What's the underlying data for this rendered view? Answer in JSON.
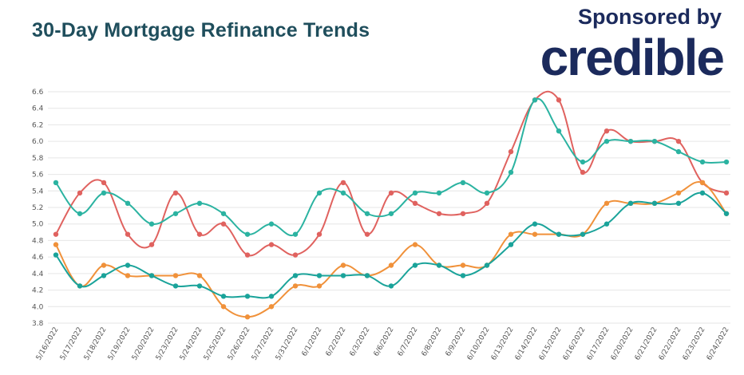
{
  "header": {
    "title": "30-Day Mortgage Refinance Trends",
    "sponsor_text": "Sponsored by",
    "brand_text": "credible"
  },
  "colors": {
    "grid": "#e6e6e6",
    "text": "#555555"
  },
  "chart_data": {
    "type": "line",
    "title": "30-Day Mortgage Refinance Trends",
    "xlabel": "",
    "ylabel": "",
    "ylim": [
      3.8,
      6.6
    ],
    "yticks": [
      3.8,
      4.0,
      4.2,
      4.4,
      4.6,
      4.8,
      5.0,
      5.2,
      5.4,
      5.6,
      5.8,
      6.0,
      6.2,
      6.4,
      6.6
    ],
    "grid": true,
    "categories": [
      "5/16/2022",
      "5/17/2022",
      "5/18/2022",
      "5/19/2022",
      "5/20/2022",
      "5/23/2022",
      "5/24/2022",
      "5/25/2022",
      "5/26/2022",
      "5/27/2022",
      "5/31/2022",
      "6/1/2022",
      "6/2/2022",
      "6/3/2022",
      "6/6/2022",
      "6/7/2022",
      "6/8/2022",
      "6/9/2022",
      "6/10/2022",
      "6/13/2022",
      "6/14/2022",
      "6/15/2022",
      "6/16/2022",
      "6/17/2022",
      "6/20/2022",
      "6/21/2022",
      "6/22/2022",
      "6/23/2022",
      "6/24/2022"
    ],
    "series": [
      {
        "color": "#e0625f",
        "values": [
          4.875,
          5.375,
          5.5,
          4.875,
          4.75,
          5.375,
          4.875,
          5.0,
          4.625,
          4.75,
          4.625,
          4.875,
          5.5,
          4.875,
          5.375,
          5.25,
          5.125,
          5.125,
          5.25,
          5.875,
          6.5,
          6.5,
          5.625,
          6.125,
          6.0,
          6.0,
          6.0,
          5.5,
          5.375
        ]
      },
      {
        "color": "#2bb3a1",
        "values": [
          5.5,
          5.125,
          5.375,
          5.25,
          5.0,
          5.125,
          5.25,
          5.125,
          4.875,
          5.0,
          4.875,
          5.375,
          5.375,
          5.125,
          5.125,
          5.375,
          5.375,
          5.5,
          5.375,
          5.625,
          6.5,
          6.125,
          5.75,
          6.0,
          6.0,
          6.0,
          5.875,
          5.75,
          5.75
        ]
      },
      {
        "color": "#f0913a",
        "values": [
          4.75,
          4.25,
          4.5,
          4.375,
          4.375,
          4.375,
          4.375,
          4.0,
          3.875,
          4.0,
          4.25,
          4.25,
          4.5,
          4.375,
          4.5,
          4.75,
          4.5,
          4.5,
          4.5,
          4.875,
          4.875,
          4.875,
          4.875,
          5.25,
          5.25,
          5.25,
          5.375,
          5.5,
          5.125
        ]
      },
      {
        "color": "#1aa39a",
        "values": [
          4.625,
          4.25,
          4.375,
          4.5,
          4.375,
          4.25,
          4.25,
          4.125,
          4.125,
          4.125,
          4.375,
          4.375,
          4.375,
          4.375,
          4.25,
          4.5,
          4.5,
          4.375,
          4.5,
          4.75,
          5.0,
          4.875,
          4.875,
          5.0,
          5.25,
          5.25,
          5.25,
          5.375,
          5.125
        ]
      }
    ]
  }
}
